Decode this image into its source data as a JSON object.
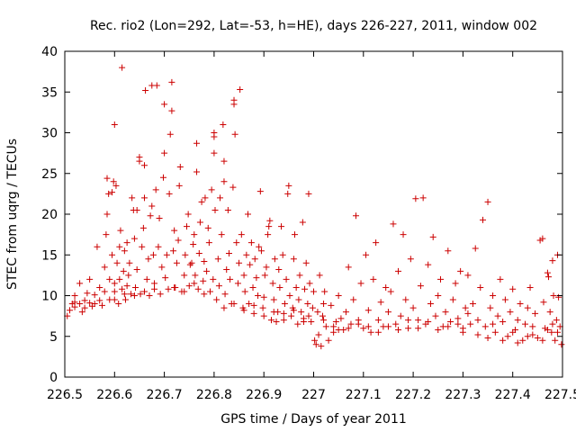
{
  "chart_data": {
    "type": "scatter",
    "title": "Rec. rio2 (Lon=292, Lat=-53, h=HE), days 226-227, 2011, window 002",
    "xlabel": "GPS time / Days of year 2011",
    "ylabel": "STEC from uqrg / TECUs",
    "xlim": [
      226.5,
      227.5
    ],
    "ylim": [
      0,
      40
    ],
    "xticks": [
      226.5,
      226.6,
      226.7,
      226.8,
      226.9,
      227.0,
      227.1,
      227.2,
      227.3,
      227.4,
      227.5
    ],
    "xtick_labels": [
      "226.5",
      "226.6",
      "226.7",
      "226.8",
      "226.9",
      "227",
      "227.1",
      "227.2",
      "227.3",
      "227.4",
      "227.5"
    ],
    "yticks": [
      0,
      5,
      10,
      15,
      20,
      25,
      30,
      35,
      40
    ],
    "ytick_labels": [
      "0",
      "5",
      "10",
      "15",
      "20",
      "25",
      "30",
      "35",
      "40"
    ],
    "grid": false,
    "marker": "+",
    "color": "#cc0000",
    "points": [
      [
        226.505,
        7.5
      ],
      [
        226.51,
        8.2
      ],
      [
        226.515,
        9.0
      ],
      [
        226.52,
        10.0
      ],
      [
        226.52,
        8.6
      ],
      [
        226.53,
        11.5
      ],
      [
        226.53,
        9.0
      ],
      [
        226.535,
        8.0
      ],
      [
        226.54,
        9.4
      ],
      [
        226.545,
        10.3
      ],
      [
        226.55,
        9.1
      ],
      [
        226.55,
        12.0
      ],
      [
        226.555,
        8.7
      ],
      [
        226.56,
        10.1
      ],
      [
        226.565,
        16.0
      ],
      [
        226.57,
        11.0
      ],
      [
        226.57,
        9.4
      ],
      [
        226.575,
        8.8
      ],
      [
        226.58,
        10.5
      ],
      [
        226.58,
        13.5
      ],
      [
        226.583,
        17.5
      ],
      [
        226.585,
        20.0
      ],
      [
        226.585,
        24.4
      ],
      [
        226.588,
        22.5
      ],
      [
        226.59,
        9.5
      ],
      [
        226.59,
        12.0
      ],
      [
        226.595,
        15.0
      ],
      [
        226.595,
        22.7
      ],
      [
        226.598,
        24.0
      ],
      [
        226.6,
        10.5
      ],
      [
        226.6,
        11.5
      ],
      [
        226.6,
        31.0
      ],
      [
        226.603,
        23.5
      ],
      [
        226.605,
        14.0
      ],
      [
        226.608,
        9.0
      ],
      [
        226.61,
        12.0
      ],
      [
        226.61,
        16.0
      ],
      [
        226.612,
        18.0
      ],
      [
        226.615,
        38.0
      ],
      [
        226.615,
        10.8
      ],
      [
        226.618,
        13.0
      ],
      [
        226.62,
        15.5
      ],
      [
        226.622,
        9.5
      ],
      [
        226.625,
        11.2
      ],
      [
        226.625,
        16.5
      ],
      [
        226.628,
        12.5
      ],
      [
        226.63,
        14.0
      ],
      [
        226.633,
        10.2
      ],
      [
        226.635,
        22.0
      ],
      [
        226.638,
        20.5
      ],
      [
        226.64,
        17.0
      ],
      [
        226.642,
        11.0
      ],
      [
        226.645,
        13.2
      ],
      [
        226.645,
        20.5
      ],
      [
        226.65,
        26.5
      ],
      [
        226.65,
        27.0
      ],
      [
        226.652,
        10.2
      ],
      [
        226.655,
        16.0
      ],
      [
        226.658,
        18.3
      ],
      [
        226.66,
        22.0
      ],
      [
        226.66,
        26.0
      ],
      [
        226.662,
        35.2
      ],
      [
        226.665,
        12.0
      ],
      [
        226.668,
        14.5
      ],
      [
        226.67,
        10.0
      ],
      [
        226.672,
        19.8
      ],
      [
        226.675,
        21.0
      ],
      [
        226.675,
        35.8
      ],
      [
        226.678,
        15.0
      ],
      [
        226.68,
        11.5
      ],
      [
        226.683,
        23.0
      ],
      [
        226.685,
        35.8
      ],
      [
        226.688,
        16.0
      ],
      [
        226.69,
        19.5
      ],
      [
        226.692,
        10.2
      ],
      [
        226.695,
        13.5
      ],
      [
        226.698,
        24.5
      ],
      [
        226.7,
        27.5
      ],
      [
        226.7,
        33.5
      ],
      [
        226.702,
        12.2
      ],
      [
        226.705,
        15.0
      ],
      [
        226.708,
        10.8
      ],
      [
        226.71,
        22.5
      ],
      [
        226.712,
        29.8
      ],
      [
        226.715,
        32.7
      ],
      [
        226.715,
        36.2
      ],
      [
        226.718,
        15.5
      ],
      [
        226.72,
        18.0
      ],
      [
        226.722,
        11.0
      ],
      [
        226.725,
        14.0
      ],
      [
        226.728,
        16.8
      ],
      [
        226.73,
        23.5
      ],
      [
        226.732,
        25.8
      ],
      [
        226.735,
        10.5
      ],
      [
        226.74,
        12.5
      ],
      [
        226.742,
        15.0
      ],
      [
        226.745,
        18.5
      ],
      [
        226.748,
        20.0
      ],
      [
        226.75,
        11.2
      ],
      [
        226.752,
        13.8
      ],
      [
        226.755,
        14.0
      ],
      [
        226.758,
        16.3
      ],
      [
        226.76,
        17.5
      ],
      [
        226.762,
        12.5
      ],
      [
        226.765,
        28.7
      ],
      [
        226.765,
        25.2
      ],
      [
        226.768,
        10.8
      ],
      [
        226.77,
        15.2
      ],
      [
        226.772,
        19.0
      ],
      [
        226.775,
        21.5
      ],
      [
        226.778,
        11.8
      ],
      [
        226.78,
        14.2
      ],
      [
        226.782,
        22.0
      ],
      [
        226.785,
        13.0
      ],
      [
        226.788,
        18.3
      ],
      [
        226.79,
        16.5
      ],
      [
        226.792,
        10.5
      ],
      [
        226.795,
        23.0
      ],
      [
        226.798,
        12.0
      ],
      [
        226.8,
        29.5
      ],
      [
        226.8,
        30.0
      ],
      [
        226.8,
        27.5
      ],
      [
        226.802,
        20.5
      ],
      [
        226.805,
        9.5
      ],
      [
        226.808,
        14.5
      ],
      [
        226.81,
        11.2
      ],
      [
        226.812,
        22.0
      ],
      [
        226.815,
        17.5
      ],
      [
        226.818,
        31.0
      ],
      [
        226.82,
        26.5
      ],
      [
        226.82,
        24.0
      ],
      [
        226.822,
        10.2
      ],
      [
        226.825,
        13.2
      ],
      [
        226.828,
        20.5
      ],
      [
        226.83,
        15.2
      ],
      [
        226.832,
        12.0
      ],
      [
        226.835,
        9.0
      ],
      [
        226.838,
        23.3
      ],
      [
        226.84,
        34.0
      ],
      [
        226.84,
        33.5
      ],
      [
        226.842,
        29.8
      ],
      [
        226.845,
        16.5
      ],
      [
        226.848,
        11.5
      ],
      [
        226.85,
        14.0
      ],
      [
        226.852,
        35.3
      ],
      [
        226.855,
        17.5
      ],
      [
        226.858,
        8.5
      ],
      [
        226.86,
        12.5
      ],
      [
        226.862,
        10.5
      ],
      [
        226.865,
        15.0
      ],
      [
        226.868,
        20.0
      ],
      [
        226.87,
        9.0
      ],
      [
        226.872,
        13.8
      ],
      [
        226.875,
        16.5
      ],
      [
        226.878,
        11.0
      ],
      [
        226.88,
        7.8
      ],
      [
        226.882,
        14.5
      ],
      [
        226.885,
        12.2
      ],
      [
        226.888,
        10.0
      ],
      [
        226.89,
        16.0
      ],
      [
        226.893,
        22.8
      ],
      [
        226.895,
        15.5
      ],
      [
        226.898,
        8.5
      ],
      [
        226.9,
        9.8
      ],
      [
        226.902,
        12.5
      ],
      [
        226.905,
        13.5
      ],
      [
        226.908,
        17.5
      ],
      [
        226.91,
        18.5
      ],
      [
        226.912,
        19.2
      ],
      [
        226.915,
        7.0
      ],
      [
        226.918,
        11.5
      ],
      [
        226.92,
        9.5
      ],
      [
        226.922,
        14.5
      ],
      [
        226.925,
        6.8
      ],
      [
        226.928,
        8.0
      ],
      [
        226.93,
        13.2
      ],
      [
        226.932,
        11.0
      ],
      [
        226.935,
        18.5
      ],
      [
        226.938,
        15.0
      ],
      [
        226.94,
        7.0
      ],
      [
        226.942,
        9.0
      ],
      [
        226.945,
        12.0
      ],
      [
        226.948,
        22.5
      ],
      [
        226.95,
        23.5
      ],
      [
        226.952,
        10.0
      ],
      [
        226.955,
        7.5
      ],
      [
        226.958,
        8.5
      ],
      [
        226.96,
        14.5
      ],
      [
        226.962,
        17.5
      ],
      [
        226.965,
        11.0
      ],
      [
        226.968,
        6.5
      ],
      [
        226.97,
        9.5
      ],
      [
        226.972,
        12.5
      ],
      [
        226.975,
        8.0
      ],
      [
        226.978,
        19.0
      ],
      [
        226.98,
        7.2
      ],
      [
        226.982,
        10.8
      ],
      [
        226.985,
        14.0
      ],
      [
        226.988,
        9.0
      ],
      [
        226.99,
        22.5
      ],
      [
        226.99,
        7.5
      ],
      [
        226.992,
        11.5
      ],
      [
        226.995,
        6.8
      ],
      [
        226.998,
        8.5
      ],
      [
        227.0,
        10.5
      ],
      [
        227.002,
        4.5
      ],
      [
        227.005,
        4.0
      ],
      [
        227.008,
        8.0
      ],
      [
        227.01,
        5.2
      ],
      [
        227.012,
        12.5
      ],
      [
        227.015,
        3.8
      ],
      [
        227.018,
        7.5
      ],
      [
        227.02,
        9.0
      ],
      [
        227.022,
        10.5
      ],
      [
        227.025,
        6.2
      ],
      [
        227.03,
        4.5
      ],
      [
        227.035,
        8.8
      ],
      [
        227.04,
        5.5
      ],
      [
        227.045,
        6.8
      ],
      [
        227.05,
        10.0
      ],
      [
        227.055,
        7.2
      ],
      [
        227.06,
        5.8
      ],
      [
        227.065,
        8.0
      ],
      [
        227.07,
        13.5
      ],
      [
        227.075,
        6.5
      ],
      [
        227.08,
        9.5
      ],
      [
        227.085,
        19.8
      ],
      [
        227.09,
        7.0
      ],
      [
        227.095,
        11.5
      ],
      [
        227.1,
        6.0
      ],
      [
        227.105,
        15.0
      ],
      [
        227.11,
        8.2
      ],
      [
        227.115,
        5.5
      ],
      [
        227.12,
        12.0
      ],
      [
        227.125,
        16.5
      ],
      [
        227.13,
        7.0
      ],
      [
        227.135,
        9.2
      ],
      [
        227.14,
        6.2
      ],
      [
        227.145,
        11.0
      ],
      [
        227.15,
        8.0
      ],
      [
        227.155,
        10.5
      ],
      [
        227.16,
        18.8
      ],
      [
        227.165,
        6.5
      ],
      [
        227.17,
        13.0
      ],
      [
        227.175,
        7.5
      ],
      [
        227.18,
        17.5
      ],
      [
        227.185,
        9.5
      ],
      [
        227.19,
        6.0
      ],
      [
        227.195,
        14.5
      ],
      [
        227.2,
        8.5
      ],
      [
        227.205,
        21.9
      ],
      [
        227.21,
        7.0
      ],
      [
        227.215,
        11.2
      ],
      [
        227.22,
        22.0
      ],
      [
        227.225,
        6.5
      ],
      [
        227.23,
        13.8
      ],
      [
        227.235,
        9.0
      ],
      [
        227.24,
        17.2
      ],
      [
        227.245,
        7.5
      ],
      [
        227.25,
        10.0
      ],
      [
        227.255,
        12.0
      ],
      [
        227.26,
        6.2
      ],
      [
        227.265,
        8.0
      ],
      [
        227.27,
        15.5
      ],
      [
        227.275,
        6.8
      ],
      [
        227.28,
        9.5
      ],
      [
        227.285,
        11.5
      ],
      [
        227.29,
        7.2
      ],
      [
        227.295,
        13.0
      ],
      [
        227.3,
        6.0
      ],
      [
        227.305,
        8.5
      ],
      [
        227.31,
        12.5
      ],
      [
        227.315,
        6.5
      ],
      [
        227.32,
        9.0
      ],
      [
        227.325,
        15.8
      ],
      [
        227.33,
        7.0
      ],
      [
        227.335,
        11.0
      ],
      [
        227.34,
        19.3
      ],
      [
        227.345,
        6.2
      ],
      [
        227.35,
        21.5
      ],
      [
        227.355,
        8.5
      ],
      [
        227.36,
        10.0
      ],
      [
        227.365,
        5.5
      ],
      [
        227.37,
        7.5
      ],
      [
        227.375,
        12.0
      ],
      [
        227.38,
        6.8
      ],
      [
        227.385,
        9.5
      ],
      [
        227.39,
        5.0
      ],
      [
        227.395,
        8.0
      ],
      [
        227.4,
        10.8
      ],
      [
        227.405,
        5.8
      ],
      [
        227.41,
        7.0
      ],
      [
        227.415,
        9.0
      ],
      [
        227.42,
        4.5
      ],
      [
        227.425,
        6.5
      ],
      [
        227.43,
        8.5
      ],
      [
        227.435,
        11.0
      ],
      [
        227.44,
        5.2
      ],
      [
        227.445,
        7.8
      ],
      [
        227.45,
        4.8
      ],
      [
        227.455,
        16.8
      ],
      [
        227.46,
        17.0
      ],
      [
        227.462,
        9.2
      ],
      [
        227.465,
        6.0
      ],
      [
        227.47,
        12.8
      ],
      [
        227.472,
        12.3
      ],
      [
        227.475,
        8.0
      ],
      [
        227.478,
        5.5
      ],
      [
        227.48,
        14.3
      ],
      [
        227.482,
        10.0
      ],
      [
        227.485,
        4.5
      ],
      [
        227.488,
        7.0
      ],
      [
        227.49,
        15.0
      ],
      [
        227.492,
        9.8
      ],
      [
        227.495,
        6.2
      ],
      [
        227.498,
        4.0
      ],
      [
        227.3,
        5.5
      ],
      [
        227.31,
        7.8
      ],
      [
        227.33,
        5.2
      ],
      [
        227.35,
        4.8
      ],
      [
        227.36,
        6.5
      ],
      [
        227.38,
        4.5
      ],
      [
        227.4,
        5.5
      ],
      [
        227.41,
        4.2
      ],
      [
        227.43,
        5.0
      ],
      [
        227.44,
        6.2
      ],
      [
        227.46,
        4.5
      ],
      [
        227.47,
        5.8
      ],
      [
        227.48,
        6.5
      ],
      [
        227.49,
        5.5
      ],
      [
        227.15,
        6.2
      ],
      [
        227.17,
        5.8
      ],
      [
        227.19,
        7.0
      ],
      [
        227.21,
        6.0
      ],
      [
        227.23,
        6.8
      ],
      [
        227.25,
        5.8
      ],
      [
        227.27,
        6.2
      ],
      [
        227.29,
        6.5
      ],
      [
        227.05,
        5.8
      ],
      [
        227.07,
        6.0
      ],
      [
        227.09,
        6.5
      ],
      [
        227.11,
        6.2
      ],
      [
        227.13,
        5.5
      ],
      [
        227.02,
        7.0
      ],
      [
        227.04,
        6.2
      ],
      [
        226.9,
        7.5
      ],
      [
        226.92,
        8.0
      ],
      [
        226.94,
        7.8
      ],
      [
        226.96,
        8.2
      ],
      [
        226.98,
        6.8
      ],
      [
        226.86,
        8.2
      ],
      [
        226.88,
        8.8
      ],
      [
        226.84,
        9.0
      ],
      [
        226.82,
        8.5
      ],
      [
        226.6,
        9.5
      ],
      [
        226.62,
        10.2
      ],
      [
        226.64,
        10.0
      ],
      [
        226.66,
        10.5
      ],
      [
        226.68,
        10.8
      ],
      [
        226.72,
        11.0
      ],
      [
        226.74,
        10.5
      ],
      [
        226.76,
        11.5
      ],
      [
        226.78,
        10.2
      ],
      [
        226.56,
        9.0
      ],
      [
        226.54,
        8.5
      ],
      [
        226.52,
        9.2
      ]
    ]
  }
}
